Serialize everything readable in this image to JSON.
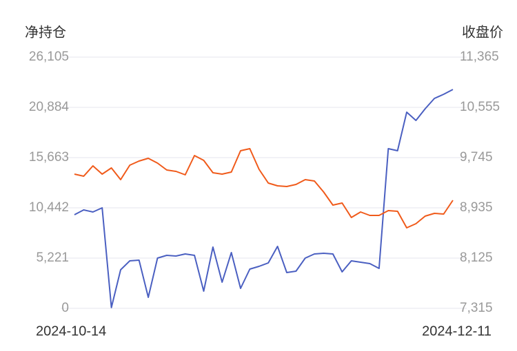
{
  "chart_data": {
    "type": "line",
    "y_label": "净持仓",
    "y2_label": "收盘价",
    "categories": [
      "2024-10-14",
      null,
      null,
      null,
      null,
      null,
      null,
      null,
      null,
      null,
      null,
      null,
      null,
      null,
      null,
      null,
      null,
      null,
      null,
      null,
      null,
      null,
      null,
      null,
      null,
      null,
      null,
      null,
      null,
      null,
      null,
      null,
      null,
      null,
      null,
      null,
      null,
      null,
      null,
      null,
      null,
      "2024-12-11"
    ],
    "series": [
      {
        "name": "净持仓",
        "color": "#4a5fc1",
        "axis": "y",
        "values": [
          9727,
          10227,
          10013,
          10442,
          80,
          4005,
          4935,
          5006,
          1144,
          5221,
          5507,
          5436,
          5650,
          5507,
          1788,
          6365,
          2718,
          5793,
          2074,
          4077,
          4363,
          4720,
          6437,
          3719,
          3862,
          5221,
          5650,
          5722,
          5650,
          3791,
          4935,
          4792,
          4649,
          4148,
          16593,
          16378,
          20384,
          19525,
          20741,
          21814,
          22243,
          22743
        ]
      },
      {
        "name": "收盘价",
        "color": "#f05a1a",
        "axis": "y2",
        "values": [
          9479,
          9445,
          9612,
          9479,
          9579,
          9390,
          9623,
          9690,
          9734,
          9656,
          9545,
          9523,
          9468,
          9778,
          9701,
          9501,
          9479,
          9512,
          9856,
          9889,
          9556,
          9334,
          9290,
          9279,
          9312,
          9390,
          9368,
          9190,
          8979,
          9013,
          8780,
          8868,
          8813,
          8813,
          8891,
          8880,
          8613,
          8680,
          8802,
          8846,
          8835,
          9057
        ]
      }
    ],
    "ylim": [
      0,
      26105
    ],
    "yticks": [
      0,
      {
        "value": 5221,
        "label": "5,221"
      },
      {
        "value": 10442,
        "label": "10,442"
      },
      {
        "value": 15663,
        "label": "15,663"
      },
      {
        "value": 20884,
        "label": "20,884"
      },
      {
        "value": 26105,
        "label": "26,105"
      }
    ],
    "y2lim": [
      7315,
      11365
    ],
    "y2ticks": [
      {
        "value": 7315,
        "label": "7,315"
      },
      {
        "value": 8125,
        "label": "8,125"
      },
      {
        "value": 8935,
        "label": "8,935"
      },
      {
        "value": 9745,
        "label": "9,745"
      },
      {
        "value": 10555,
        "label": "10,555"
      },
      {
        "value": 11365,
        "label": "11,365"
      }
    ],
    "grid": true
  }
}
